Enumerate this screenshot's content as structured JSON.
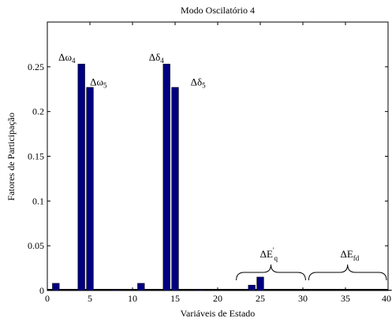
{
  "chart_data": {
    "type": "bar",
    "title": "Modo Oscilatório 4",
    "xlabel": "Variáveis de Estado",
    "ylabel": "Fatores de Participação",
    "xlim": [
      0,
      40
    ],
    "ylim": [
      0,
      0.3
    ],
    "x_ticks": [
      0,
      5,
      10,
      15,
      20,
      25,
      30,
      35,
      40
    ],
    "y_ticks": [
      0,
      0.05,
      0.1,
      0.15,
      0.2,
      0.25
    ],
    "x_tick_labels": [
      "0",
      "5",
      "10",
      "15",
      "20",
      "25",
      "30",
      "35",
      "40"
    ],
    "y_tick_labels": [
      "0",
      "0.05",
      "0.1",
      "0.15",
      "0.2",
      "0.25"
    ],
    "grid": false,
    "bar_color": "#000080",
    "x": [
      1,
      2,
      3,
      4,
      5,
      6,
      7,
      8,
      9,
      10,
      11,
      12,
      13,
      14,
      15,
      16,
      17,
      18,
      19,
      20,
      21,
      22,
      23,
      24,
      25,
      26,
      27,
      28,
      29,
      30,
      31,
      32,
      33,
      34,
      35,
      36,
      37,
      38,
      39,
      40
    ],
    "values": [
      0.008,
      0.0005,
      0.0005,
      0.253,
      0.227,
      0.0005,
      0.0005,
      0.001,
      0.0005,
      0.0005,
      0.008,
      0.0005,
      0.0005,
      0.253,
      0.227,
      0.0005,
      0.0005,
      0.001,
      0.0005,
      0.0005,
      0.0005,
      0.0005,
      0.0005,
      0.006,
      0.015,
      0.0005,
      0.0005,
      0.0005,
      0.0005,
      0.0005,
      0.0005,
      0.0005,
      0.0005,
      0.0005,
      0.0005,
      0.0005,
      0.0005,
      0.0005,
      0.0005,
      0.0005
    ],
    "annotations": [
      {
        "symbol": "Δω",
        "sub": "4",
        "x": 2.3,
        "y": 0.257
      },
      {
        "symbol": "Δω",
        "sub": "5",
        "x": 6.0,
        "y": 0.229
      },
      {
        "symbol": "Δδ",
        "sub": "4",
        "x": 12.8,
        "y": 0.257
      },
      {
        "symbol": "Δδ",
        "sub": "5",
        "x": 17.7,
        "y": 0.229
      }
    ],
    "braces": [
      {
        "x_start": 22,
        "x_end": 30.5,
        "label_main": "ΔE",
        "label_sup": "'",
        "label_sub": "q",
        "label_x": 26.0
      },
      {
        "x_start": 30.5,
        "x_end": 40,
        "label_main": "ΔE",
        "label_sup": "",
        "label_sub": "fd",
        "label_x": 35.5
      }
    ]
  }
}
